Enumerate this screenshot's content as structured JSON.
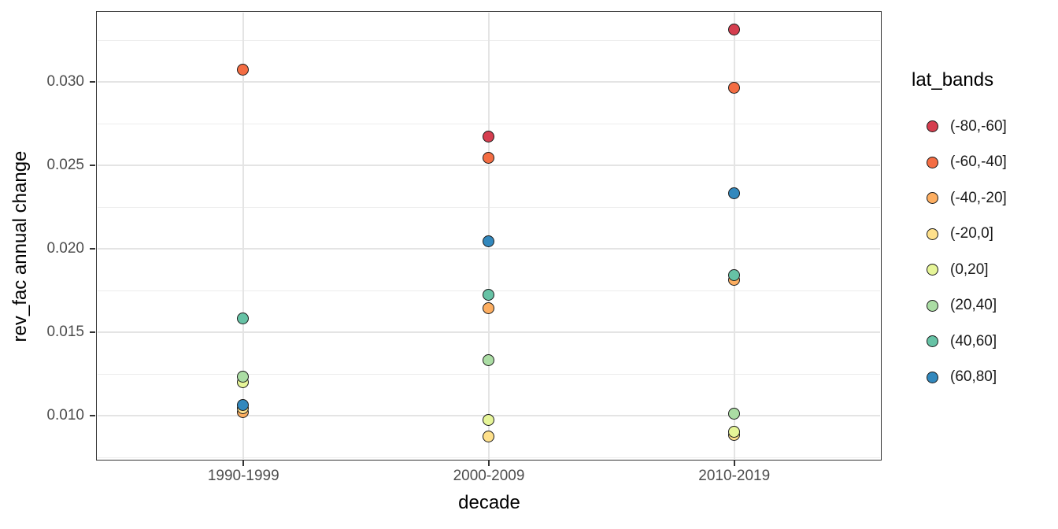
{
  "chart_data": {
    "type": "scatter",
    "xlabel": "decade",
    "ylabel": "rev_fac annual change",
    "x_categories": [
      "1990-1999",
      "2000-2009",
      "2010-2019"
    ],
    "y_ticks": [
      {
        "value": 0.01,
        "label": "0.010"
      },
      {
        "value": 0.015,
        "label": "0.015"
      },
      {
        "value": 0.02,
        "label": "0.020"
      },
      {
        "value": 0.025,
        "label": "0.025"
      },
      {
        "value": 0.03,
        "label": "0.030"
      }
    ],
    "y_minor_ticks": [
      0.0075,
      0.0125,
      0.0175,
      0.0225,
      0.0275,
      0.0325
    ],
    "ylim": [
      0.0074,
      0.0342
    ],
    "grid": "on",
    "legend_position": "right",
    "legend_title": "lat_bands",
    "point_outline_color": "#1a1a1a",
    "series": [
      {
        "name": "(-80,-60]",
        "color": "#d53e4f",
        "values": [
          null,
          0.0267,
          0.0331
        ]
      },
      {
        "name": "(-60,-40]",
        "color": "#f46d43",
        "values": [
          0.0307,
          0.0254,
          0.0296
        ]
      },
      {
        "name": "(-40,-20]",
        "color": "#fdae61",
        "values": [
          0.0102,
          0.0164,
          0.0181
        ]
      },
      {
        "name": "(-20,0]",
        "color": "#fee08b",
        "values": [
          0.0104,
          0.0087,
          0.0088
        ]
      },
      {
        "name": "(0,20]",
        "color": "#e6f598",
        "values": [
          0.012,
          0.0097,
          0.009
        ]
      },
      {
        "name": "(20,40]",
        "color": "#abdda4",
        "values": [
          0.0123,
          0.0133,
          0.0101
        ]
      },
      {
        "name": "(40,60]",
        "color": "#66c2a5",
        "values": [
          0.0158,
          0.0172,
          0.0184
        ]
      },
      {
        "name": "(60,80]",
        "color": "#3288bd",
        "values": [
          0.0106,
          0.0204,
          0.0233
        ]
      }
    ]
  }
}
